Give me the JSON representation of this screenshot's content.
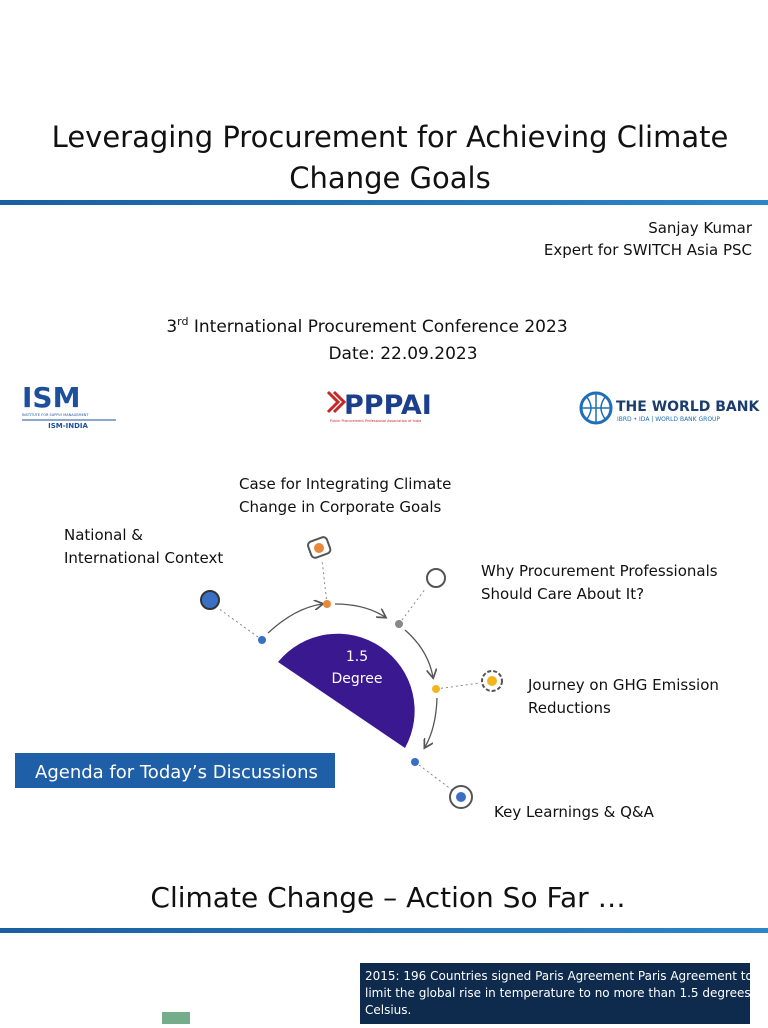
{
  "slide1": {
    "title_lines": [
      "Leveraging Procurement for Achieving Climate",
      "Change Goals"
    ],
    "author": {
      "name": "Sanjay Kumar",
      "role": "Expert for SWITCH Asia PSC"
    },
    "conference": {
      "ordinal": "3",
      "suffix": "rd",
      "rest": " International Procurement Conference 2023"
    },
    "date": "Date: 22.09.2023",
    "logos": {
      "ism": {
        "name": "ISM",
        "tagline": "INSTITUTE FOR SUPPLY MANAGEMENT",
        "sub": "ISM-INDIA"
      },
      "pppai": {
        "name": "PPPAI",
        "tagline": "Public Procurement Professional Association of India"
      },
      "worldbank": {
        "name": "THE WORLD BANK",
        "tagline": "IBRD • IDA | WORLD BANK GROUP"
      }
    },
    "center": [
      "1.5",
      "Degree"
    ],
    "agenda_items": [
      [
        "National &",
        "International Context"
      ],
      [
        "Case for Integrating Climate",
        "Change in Corporate Goals"
      ],
      [
        "Why Procurement Professionals",
        "Should Care About It?"
      ],
      [
        "Journey on GHG Emission",
        "Reductions"
      ],
      [
        "Key Learnings & Q&A"
      ]
    ],
    "agenda_label": "Agenda for Today’s Discussions"
  },
  "slide2": {
    "title": "Climate Change – Action So Far …",
    "note_lines": [
      "2015: 196 Countries signed Paris Agreement Paris Agreement to",
      "limit the global rise in temperature to no more than 1.5 degrees",
      "Celsius."
    ]
  }
}
